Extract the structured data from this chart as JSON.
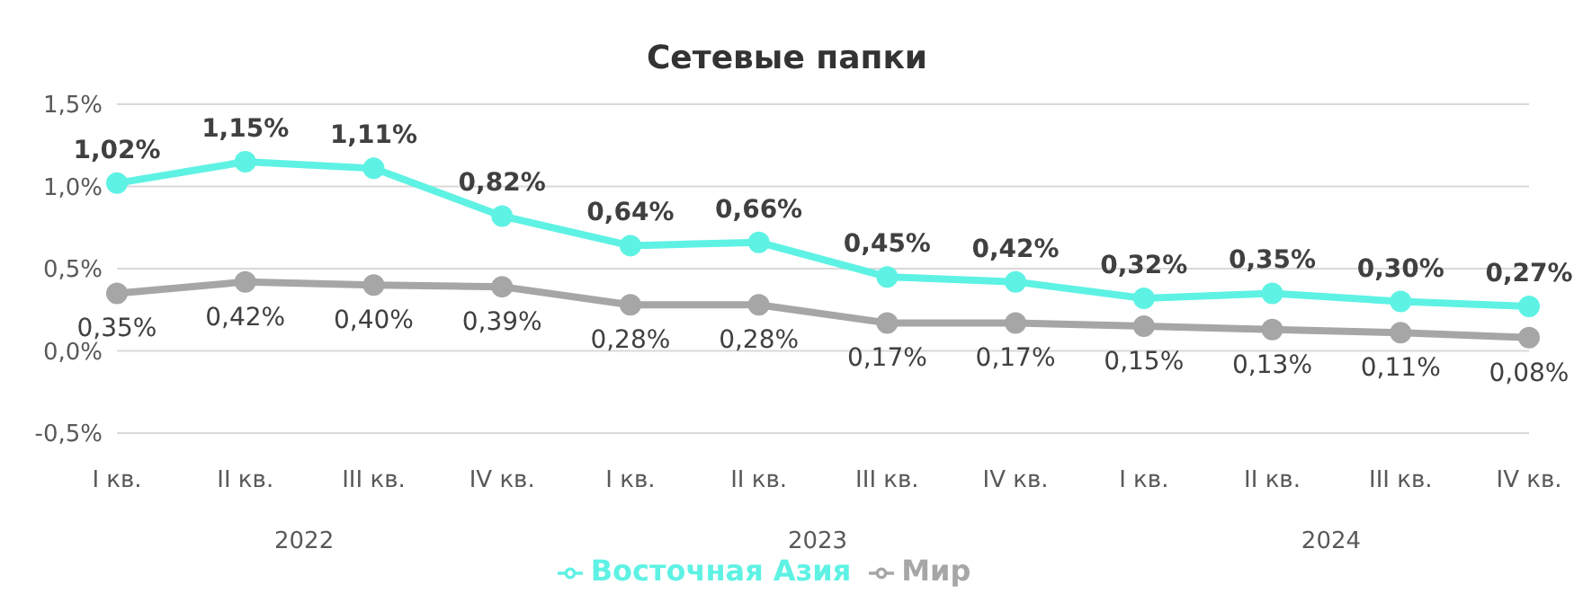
{
  "chart_data": {
    "type": "line",
    "title": "Сетевые папки",
    "categories": [
      "I кв.",
      "II кв.",
      "III кв.",
      "IV кв.",
      "I кв.",
      "II кв.",
      "III кв.",
      "IV кв.",
      "I кв.",
      "II кв.",
      "III кв.",
      "IV кв."
    ],
    "series": [
      {
        "name": "Восточная Азия",
        "color": "#5ef2e4",
        "values": [
          1.02,
          1.15,
          1.11,
          0.82,
          0.64,
          0.66,
          0.45,
          0.42,
          0.32,
          0.35,
          0.3,
          0.27
        ],
        "value_labels": [
          "1,02%",
          "1,15%",
          "1,11%",
          "0,82%",
          "0,64%",
          "0,66%",
          "0,45%",
          "0,42%",
          "0,32%",
          "0,35%",
          "0,30%",
          "0,27%"
        ]
      },
      {
        "name": "Мир",
        "color": "#a6a6a6",
        "values": [
          0.35,
          0.42,
          0.4,
          0.39,
          0.28,
          0.28,
          0.17,
          0.17,
          0.15,
          0.13,
          0.11,
          0.08
        ],
        "value_labels": [
          "0,35%",
          "0,42%",
          "0,40%",
          "0,39%",
          "0,28%",
          "0,28%",
          "0,17%",
          "0,17%",
          "0,15%",
          "0,13%",
          "0,11%",
          "0,08%"
        ]
      }
    ],
    "annotations": [
      "2022",
      "2023",
      "2024"
    ],
    "ylim": [
      -0.5,
      1.5
    ],
    "yticks": [
      {
        "value": -0.5,
        "label": "-0,5%"
      },
      {
        "value": 0,
        "label": "0,0%"
      },
      {
        "value": 0.5,
        "label": "0,5%"
      },
      {
        "value": 1,
        "label": "1,0%"
      },
      {
        "value": 1.5,
        "label": "1,5%"
      }
    ],
    "grid": "y",
    "legend": "bottom",
    "marker": "circle",
    "line_style": "solid"
  }
}
